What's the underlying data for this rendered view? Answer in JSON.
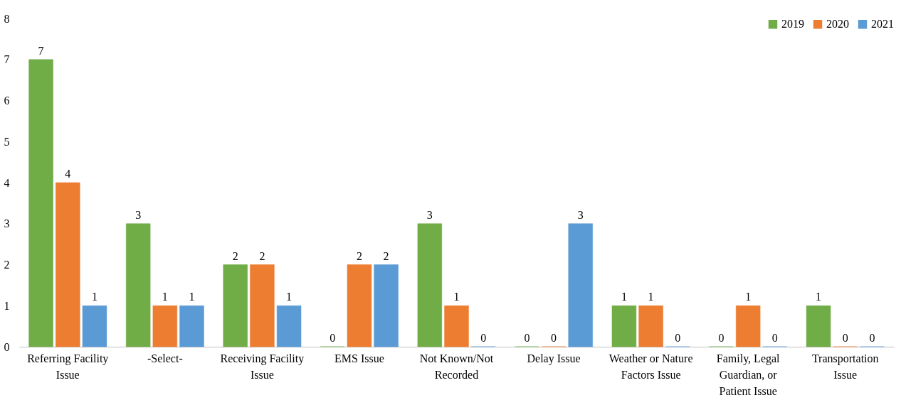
{
  "chart_data": {
    "type": "bar",
    "categories": [
      "Referring Facility Issue",
      "-Select-",
      "Receiving Facility Issue",
      "EMS Issue",
      "Not Known/Not Recorded",
      "Delay Issue",
      "Weather or Nature Factors Issue",
      "Family, Legal Guardian, or Patient Issue",
      "Transportation Issue"
    ],
    "series": [
      {
        "name": "2019",
        "color": "#70ad47",
        "values": [
          7,
          3,
          2,
          0,
          3,
          0,
          1,
          0,
          1
        ]
      },
      {
        "name": "2020",
        "color": "#ed7d31",
        "values": [
          4,
          1,
          2,
          2,
          1,
          0,
          1,
          1,
          0
        ]
      },
      {
        "name": "2021",
        "color": "#5b9bd5",
        "values": [
          1,
          1,
          1,
          2,
          0,
          3,
          0,
          0,
          0
        ]
      }
    ],
    "ylim": [
      0,
      8
    ],
    "yticks": [
      0,
      1,
      2,
      3,
      4,
      5,
      6,
      7,
      8
    ],
    "grid": false,
    "legend": "top right",
    "data_labels": true
  }
}
